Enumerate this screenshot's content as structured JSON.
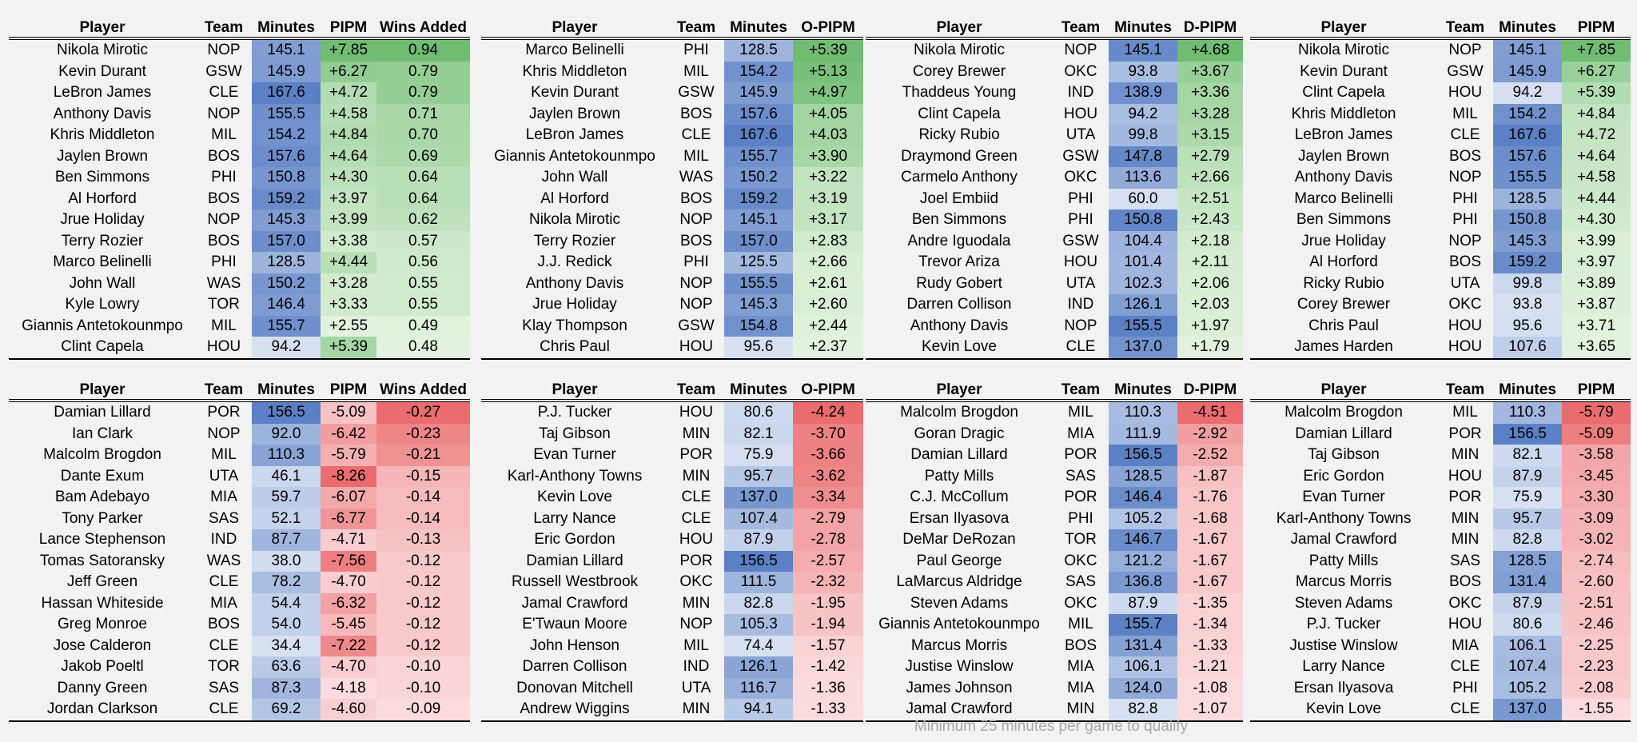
{
  "colors": {
    "minutes_low": "#d6e0f1",
    "minutes_high": "#5b80c5",
    "positive_low": "#e2f2de",
    "positive_high": "#6fbc72",
    "negative_low": "#fbdbdd",
    "negative_high": "#ea6c6e"
  },
  "footnote": "Minimum 25 minutes per game to qualify",
  "tables": [
    {
      "name": "top-pipm-wins-added",
      "headers": [
        "Player",
        "Team",
        "Minutes",
        "PIPM",
        "Wins Added"
      ],
      "color_cols": [
        2,
        3,
        4
      ],
      "tone": "positive",
      "rows": [
        [
          "Nikola Mirotic",
          "NOP",
          "145.1",
          "+7.85",
          "0.94"
        ],
        [
          "Kevin Durant",
          "GSW",
          "145.9",
          "+6.27",
          "0.79"
        ],
        [
          "LeBron James",
          "CLE",
          "167.6",
          "+4.72",
          "0.79"
        ],
        [
          "Anthony Davis",
          "NOP",
          "155.5",
          "+4.58",
          "0.71"
        ],
        [
          "Khris Middleton",
          "MIL",
          "154.2",
          "+4.84",
          "0.70"
        ],
        [
          "Jaylen Brown",
          "BOS",
          "157.6",
          "+4.64",
          "0.69"
        ],
        [
          "Ben Simmons",
          "PHI",
          "150.8",
          "+4.30",
          "0.64"
        ],
        [
          "Al Horford",
          "BOS",
          "159.2",
          "+3.97",
          "0.64"
        ],
        [
          "Jrue Holiday",
          "NOP",
          "145.3",
          "+3.99",
          "0.62"
        ],
        [
          "Terry Rozier",
          "BOS",
          "157.0",
          "+3.38",
          "0.57"
        ],
        [
          "Marco Belinelli",
          "PHI",
          "128.5",
          "+4.44",
          "0.56"
        ],
        [
          "John Wall",
          "WAS",
          "150.2",
          "+3.28",
          "0.55"
        ],
        [
          "Kyle Lowry",
          "TOR",
          "146.4",
          "+3.33",
          "0.55"
        ],
        [
          "Giannis Antetokounmpo",
          "MIL",
          "155.7",
          "+2.55",
          "0.49"
        ],
        [
          "Clint Capela",
          "HOU",
          "94.2",
          "+5.39",
          "0.48"
        ]
      ]
    },
    {
      "name": "top-o-pipm",
      "headers": [
        "Player",
        "Team",
        "Minutes",
        "O-PIPM"
      ],
      "color_cols": [
        2,
        3
      ],
      "tone": "positive",
      "rows": [
        [
          "Marco Belinelli",
          "PHI",
          "128.5",
          "+5.39"
        ],
        [
          "Khris Middleton",
          "MIL",
          "154.2",
          "+5.13"
        ],
        [
          "Kevin Durant",
          "GSW",
          "145.9",
          "+4.97"
        ],
        [
          "Jaylen Brown",
          "BOS",
          "157.6",
          "+4.05"
        ],
        [
          "LeBron James",
          "CLE",
          "167.6",
          "+4.03"
        ],
        [
          "Giannis Antetokounmpo",
          "MIL",
          "155.7",
          "+3.90"
        ],
        [
          "John Wall",
          "WAS",
          "150.2",
          "+3.22"
        ],
        [
          "Al Horford",
          "BOS",
          "159.2",
          "+3.19"
        ],
        [
          "Nikola Mirotic",
          "NOP",
          "145.1",
          "+3.17"
        ],
        [
          "Terry Rozier",
          "BOS",
          "157.0",
          "+2.83"
        ],
        [
          "J.J. Redick",
          "PHI",
          "125.5",
          "+2.66"
        ],
        [
          "Anthony Davis",
          "NOP",
          "155.5",
          "+2.61"
        ],
        [
          "Jrue Holiday",
          "NOP",
          "145.3",
          "+2.60"
        ],
        [
          "Klay Thompson",
          "GSW",
          "154.8",
          "+2.44"
        ],
        [
          "Chris Paul",
          "HOU",
          "95.6",
          "+2.37"
        ]
      ]
    },
    {
      "name": "top-d-pipm",
      "headers": [
        "Player",
        "Team",
        "Minutes",
        "D-PIPM"
      ],
      "color_cols": [
        2,
        3
      ],
      "tone": "positive",
      "rows": [
        [
          "Nikola Mirotic",
          "NOP",
          "145.1",
          "+4.68"
        ],
        [
          "Corey Brewer",
          "OKC",
          "93.8",
          "+3.67"
        ],
        [
          "Thaddeus Young",
          "IND",
          "138.9",
          "+3.36"
        ],
        [
          "Clint Capela",
          "HOU",
          "94.2",
          "+3.28"
        ],
        [
          "Ricky Rubio",
          "UTA",
          "99.8",
          "+3.15"
        ],
        [
          "Draymond Green",
          "GSW",
          "147.8",
          "+2.79"
        ],
        [
          "Carmelo Anthony",
          "OKC",
          "113.6",
          "+2.66"
        ],
        [
          "Joel Embiid",
          "PHI",
          "60.0",
          "+2.51"
        ],
        [
          "Ben Simmons",
          "PHI",
          "150.8",
          "+2.43"
        ],
        [
          "Andre Iguodala",
          "GSW",
          "104.4",
          "+2.18"
        ],
        [
          "Trevor Ariza",
          "HOU",
          "101.4",
          "+2.11"
        ],
        [
          "Rudy Gobert",
          "UTA",
          "102.3",
          "+2.06"
        ],
        [
          "Darren Collison",
          "IND",
          "126.1",
          "+2.03"
        ],
        [
          "Anthony Davis",
          "NOP",
          "155.5",
          "+1.97"
        ],
        [
          "Kevin Love",
          "CLE",
          "137.0",
          "+1.79"
        ]
      ]
    },
    {
      "name": "top-pipm",
      "headers": [
        "Player",
        "Team",
        "Minutes",
        "PIPM"
      ],
      "color_cols": [
        2,
        3
      ],
      "tone": "positive",
      "rows": [
        [
          "Nikola Mirotic",
          "NOP",
          "145.1",
          "+7.85"
        ],
        [
          "Kevin Durant",
          "GSW",
          "145.9",
          "+6.27"
        ],
        [
          "Clint Capela",
          "HOU",
          "94.2",
          "+5.39"
        ],
        [
          "Khris Middleton",
          "MIL",
          "154.2",
          "+4.84"
        ],
        [
          "LeBron James",
          "CLE",
          "167.6",
          "+4.72"
        ],
        [
          "Jaylen Brown",
          "BOS",
          "157.6",
          "+4.64"
        ],
        [
          "Anthony Davis",
          "NOP",
          "155.5",
          "+4.58"
        ],
        [
          "Marco Belinelli",
          "PHI",
          "128.5",
          "+4.44"
        ],
        [
          "Ben Simmons",
          "PHI",
          "150.8",
          "+4.30"
        ],
        [
          "Jrue Holiday",
          "NOP",
          "145.3",
          "+3.99"
        ],
        [
          "Al Horford",
          "BOS",
          "159.2",
          "+3.97"
        ],
        [
          "Ricky Rubio",
          "UTA",
          "99.8",
          "+3.89"
        ],
        [
          "Corey Brewer",
          "OKC",
          "93.8",
          "+3.87"
        ],
        [
          "Chris Paul",
          "HOU",
          "95.6",
          "+3.71"
        ],
        [
          "James Harden",
          "HOU",
          "107.6",
          "+3.65"
        ]
      ]
    },
    {
      "name": "bottom-pipm-wins-added",
      "headers": [
        "Player",
        "Team",
        "Minutes",
        "PIPM",
        "Wins Added"
      ],
      "color_cols": [
        2,
        3,
        4
      ],
      "tone": "negative",
      "rows": [
        [
          "Damian Lillard",
          "POR",
          "156.5",
          "-5.09",
          "-0.27"
        ],
        [
          "Ian Clark",
          "NOP",
          "92.0",
          "-6.42",
          "-0.23"
        ],
        [
          "Malcolm Brogdon",
          "MIL",
          "110.3",
          "-5.79",
          "-0.21"
        ],
        [
          "Dante Exum",
          "UTA",
          "46.1",
          "-8.26",
          "-0.15"
        ],
        [
          "Bam Adebayo",
          "MIA",
          "59.7",
          "-6.07",
          "-0.14"
        ],
        [
          "Tony Parker",
          "SAS",
          "52.1",
          "-6.77",
          "-0.14"
        ],
        [
          "Lance Stephenson",
          "IND",
          "87.7",
          "-4.71",
          "-0.13"
        ],
        [
          "Tomas Satoransky",
          "WAS",
          "38.0",
          "-7.56",
          "-0.12"
        ],
        [
          "Jeff Green",
          "CLE",
          "78.2",
          "-4.70",
          "-0.12"
        ],
        [
          "Hassan Whiteside",
          "MIA",
          "54.4",
          "-6.32",
          "-0.12"
        ],
        [
          "Greg Monroe",
          "BOS",
          "54.0",
          "-5.45",
          "-0.12"
        ],
        [
          "Jose Calderon",
          "CLE",
          "34.4",
          "-7.22",
          "-0.12"
        ],
        [
          "Jakob Poeltl",
          "TOR",
          "63.6",
          "-4.70",
          "-0.10"
        ],
        [
          "Danny Green",
          "SAS",
          "87.3",
          "-4.18",
          "-0.10"
        ],
        [
          "Jordan Clarkson",
          "CLE",
          "69.2",
          "-4.60",
          "-0.09"
        ]
      ]
    },
    {
      "name": "bottom-o-pipm",
      "headers": [
        "Player",
        "Team",
        "Minutes",
        "O-PIPM"
      ],
      "color_cols": [
        2,
        3
      ],
      "tone": "negative",
      "rows": [
        [
          "P.J. Tucker",
          "HOU",
          "80.6",
          "-4.24"
        ],
        [
          "Taj Gibson",
          "MIN",
          "82.1",
          "-3.70"
        ],
        [
          "Evan Turner",
          "POR",
          "75.9",
          "-3.66"
        ],
        [
          "Karl-Anthony Towns",
          "MIN",
          "95.7",
          "-3.62"
        ],
        [
          "Kevin Love",
          "CLE",
          "137.0",
          "-3.34"
        ],
        [
          "Larry Nance",
          "CLE",
          "107.4",
          "-2.79"
        ],
        [
          "Eric Gordon",
          "HOU",
          "87.9",
          "-2.78"
        ],
        [
          "Damian Lillard",
          "POR",
          "156.5",
          "-2.57"
        ],
        [
          "Russell Westbrook",
          "OKC",
          "111.5",
          "-2.32"
        ],
        [
          "Jamal Crawford",
          "MIN",
          "82.8",
          "-1.95"
        ],
        [
          "E'Twaun Moore",
          "NOP",
          "105.3",
          "-1.94"
        ],
        [
          "John Henson",
          "MIL",
          "74.4",
          "-1.57"
        ],
        [
          "Darren Collison",
          "IND",
          "126.1",
          "-1.42"
        ],
        [
          "Donovan Mitchell",
          "UTA",
          "116.7",
          "-1.36"
        ],
        [
          "Andrew Wiggins",
          "MIN",
          "94.1",
          "-1.33"
        ]
      ]
    },
    {
      "name": "bottom-d-pipm",
      "headers": [
        "Player",
        "Team",
        "Minutes",
        "D-PIPM"
      ],
      "color_cols": [
        2,
        3
      ],
      "tone": "negative",
      "rows": [
        [
          "Malcolm Brogdon",
          "MIL",
          "110.3",
          "-4.51"
        ],
        [
          "Goran Dragic",
          "MIA",
          "111.9",
          "-2.92"
        ],
        [
          "Damian Lillard",
          "POR",
          "156.5",
          "-2.52"
        ],
        [
          "Patty Mills",
          "SAS",
          "128.5",
          "-1.87"
        ],
        [
          "C.J. McCollum",
          "POR",
          "146.4",
          "-1.76"
        ],
        [
          "Ersan Ilyasova",
          "PHI",
          "105.2",
          "-1.68"
        ],
        [
          "DeMar DeRozan",
          "TOR",
          "146.7",
          "-1.67"
        ],
        [
          "Paul George",
          "OKC",
          "121.2",
          "-1.67"
        ],
        [
          "LaMarcus Aldridge",
          "SAS",
          "136.8",
          "-1.67"
        ],
        [
          "Steven Adams",
          "OKC",
          "87.9",
          "-1.35"
        ],
        [
          "Giannis Antetokounmpo",
          "MIL",
          "155.7",
          "-1.34"
        ],
        [
          "Marcus Morris",
          "BOS",
          "131.4",
          "-1.33"
        ],
        [
          "Justise Winslow",
          "MIA",
          "106.1",
          "-1.21"
        ],
        [
          "James Johnson",
          "MIA",
          "124.0",
          "-1.08"
        ],
        [
          "Jamal Crawford",
          "MIN",
          "82.8",
          "-1.07"
        ]
      ]
    },
    {
      "name": "bottom-pipm",
      "headers": [
        "Player",
        "Team",
        "Minutes",
        "PIPM"
      ],
      "color_cols": [
        2,
        3
      ],
      "tone": "negative",
      "rows": [
        [
          "Malcolm Brogdon",
          "MIL",
          "110.3",
          "-5.79"
        ],
        [
          "Damian Lillard",
          "POR",
          "156.5",
          "-5.09"
        ],
        [
          "Taj Gibson",
          "MIN",
          "82.1",
          "-3.58"
        ],
        [
          "Eric Gordon",
          "HOU",
          "87.9",
          "-3.45"
        ],
        [
          "Evan Turner",
          "POR",
          "75.9",
          "-3.30"
        ],
        [
          "Karl-Anthony Towns",
          "MIN",
          "95.7",
          "-3.09"
        ],
        [
          "Jamal Crawford",
          "MIN",
          "82.8",
          "-3.02"
        ],
        [
          "Patty Mills",
          "SAS",
          "128.5",
          "-2.74"
        ],
        [
          "Marcus Morris",
          "BOS",
          "131.4",
          "-2.60"
        ],
        [
          "Steven Adams",
          "OKC",
          "87.9",
          "-2.51"
        ],
        [
          "P.J. Tucker",
          "HOU",
          "80.6",
          "-2.46"
        ],
        [
          "Justise Winslow",
          "MIA",
          "106.1",
          "-2.25"
        ],
        [
          "Larry Nance",
          "CLE",
          "107.4",
          "-2.23"
        ],
        [
          "Ersan Ilyasova",
          "PHI",
          "105.2",
          "-2.08"
        ],
        [
          "Kevin Love",
          "CLE",
          "137.0",
          "-1.55"
        ]
      ]
    }
  ]
}
